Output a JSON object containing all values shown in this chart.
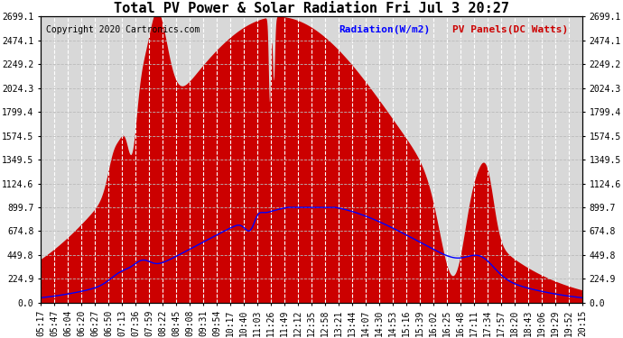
{
  "title": "Total PV Power & Solar Radiation Fri Jul 3 20:27",
  "copyright": "Copyright 2020 Cartronics.com",
  "legend_radiation": "Radiation(W/m2)",
  "legend_pv": "PV Panels(DC Watts)",
  "yticks": [
    0.0,
    224.9,
    449.8,
    674.8,
    899.7,
    1124.6,
    1349.5,
    1574.5,
    1799.4,
    2024.3,
    2249.2,
    2474.1,
    2699.1
  ],
  "ymax": 2699.1,
  "ymin": 0.0,
  "bg_color": "#ffffff",
  "plot_bg_color": "#d8d8d8",
  "red_fill_color": "#cc0000",
  "blue_line_color": "#0000ff",
  "grid_color": "#bbbbbb",
  "white_vgrid_color": "#ffffff",
  "title_fontsize": 11,
  "copyright_fontsize": 7,
  "tick_fontsize": 7,
  "legend_fontsize": 8,
  "figsize": [
    6.9,
    3.75
  ],
  "dpi": 100,
  "xtick_labels": [
    "05:17",
    "05:47",
    "06:04",
    "06:20",
    "06:27",
    "06:50",
    "07:13",
    "07:36",
    "07:59",
    "08:22",
    "08:45",
    "09:08",
    "09:31",
    "09:54",
    "10:17",
    "10:40",
    "11:03",
    "11:26",
    "11:49",
    "12:12",
    "12:35",
    "12:58",
    "13:21",
    "13:44",
    "14:07",
    "14:30",
    "14:53",
    "15:16",
    "15:39",
    "16:02",
    "16:25",
    "16:48",
    "17:11",
    "17:34",
    "17:57",
    "18:20",
    "18:43",
    "19:06",
    "19:29",
    "19:52",
    "20:15"
  ]
}
